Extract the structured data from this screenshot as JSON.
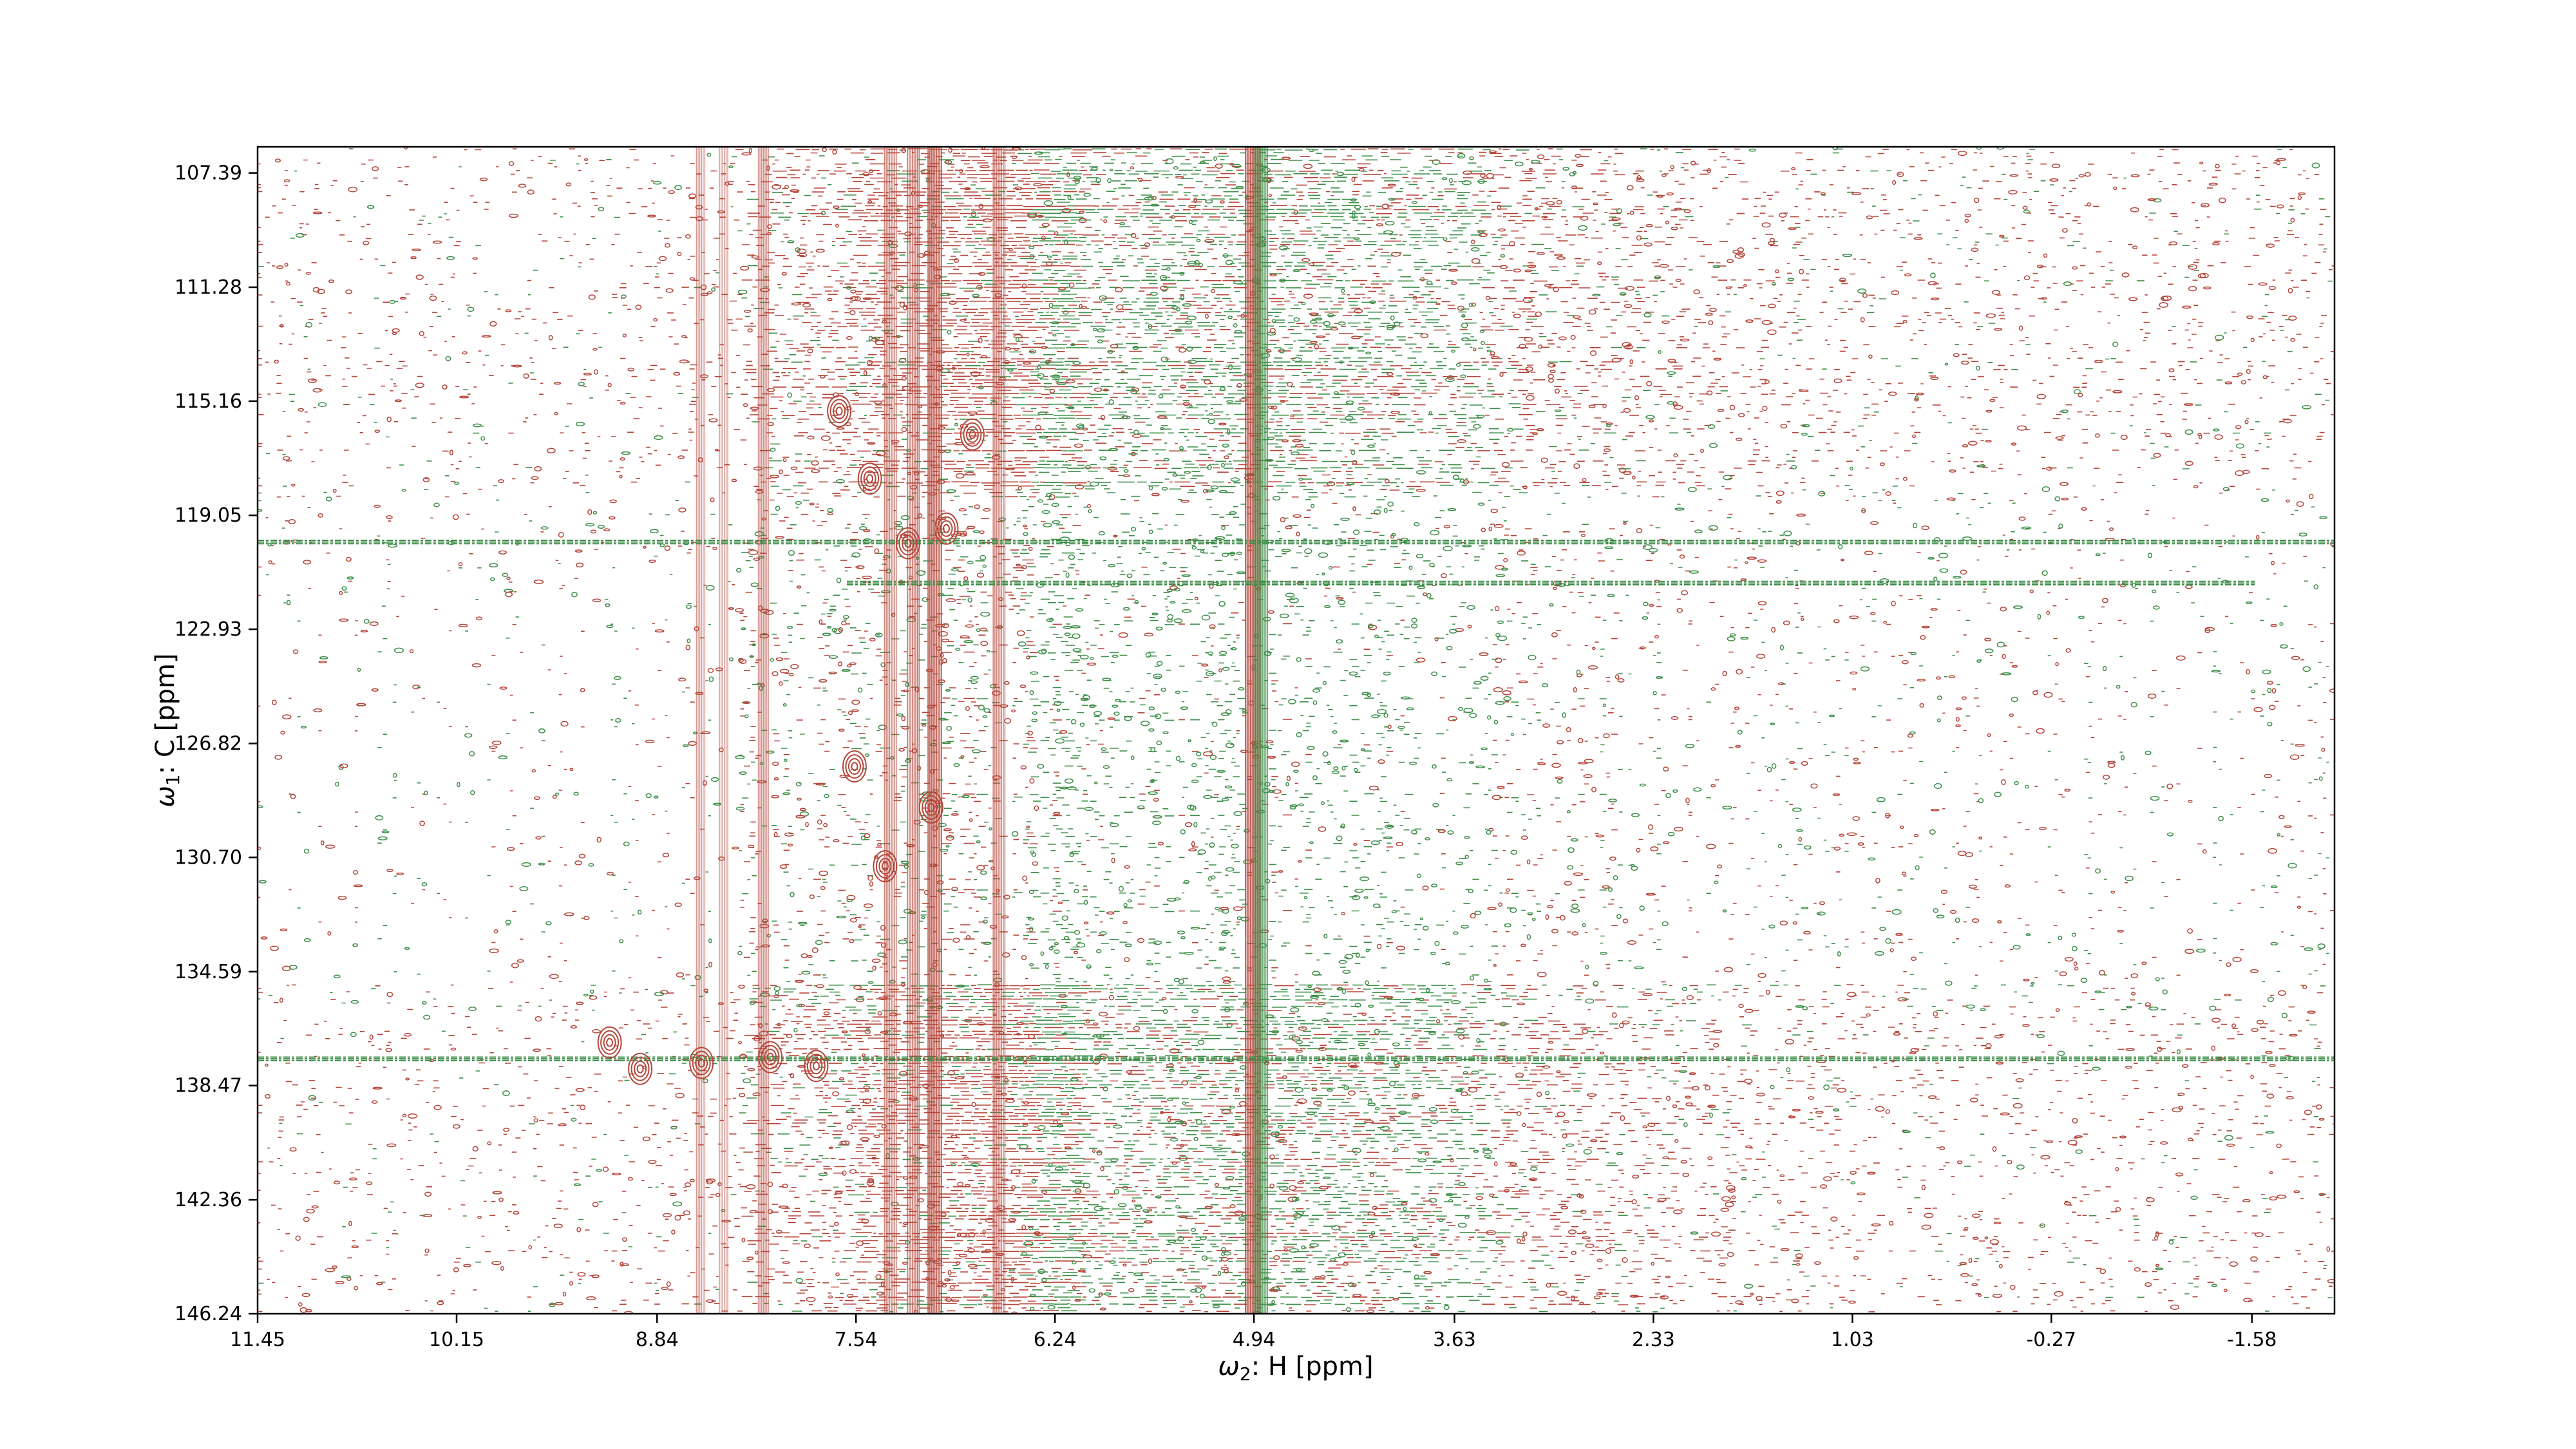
{
  "chart_data": {
    "type": "heatmap",
    "subtype": "2D NMR contour spectrum",
    "title": "",
    "xlabel": {
      "symbol": "ω",
      "subscript": "2",
      "text": ": H [ppm]"
    },
    "ylabel": {
      "symbol": "ω",
      "subscript": "1",
      "text": ": C [ppm]"
    },
    "xlim": [
      11.45,
      -2.12
    ],
    "ylim": [
      106.5,
      146.24
    ],
    "x_axis_inverted": true,
    "y_axis_inverted": true,
    "grid": false,
    "legend": "none",
    "x_ticks": [
      "11.45",
      "10.15",
      "8.84",
      "7.54",
      "6.24",
      "4.94",
      "3.63",
      "2.33",
      "1.03",
      "-0.27",
      "-1.58"
    ],
    "x_tick_values": [
      11.45,
      10.15,
      8.84,
      7.54,
      6.24,
      4.94,
      3.63,
      2.33,
      1.03,
      -0.27,
      -1.58
    ],
    "y_ticks": [
      "107.39",
      "111.28",
      "115.16",
      "119.05",
      "122.93",
      "126.82",
      "130.70",
      "134.59",
      "138.47",
      "142.36",
      "146.24"
    ],
    "y_tick_values": [
      107.39,
      111.28,
      115.16,
      119.05,
      122.93,
      126.82,
      130.7,
      134.59,
      138.47,
      142.36,
      146.24
    ],
    "series": [
      {
        "sign": "positive",
        "color": "#b5463a"
      },
      {
        "sign": "negative",
        "color": "#3f8f4a"
      }
    ],
    "vertical_bands_ppm": [
      {
        "x": 4.94,
        "strength": 1.0,
        "color": "#b5463a"
      },
      {
        "x": 4.89,
        "strength": 0.8,
        "color": "#3f8f4a"
      },
      {
        "x": 7.02,
        "strength": 0.9,
        "color": "#b5463a"
      },
      {
        "x": 7.16,
        "strength": 0.7,
        "color": "#b5463a"
      },
      {
        "x": 7.31,
        "strength": 0.6,
        "color": "#b5463a"
      },
      {
        "x": 6.6,
        "strength": 0.6,
        "color": "#b5463a"
      },
      {
        "x": 8.14,
        "strength": 0.5,
        "color": "#b5463a"
      },
      {
        "x": 8.4,
        "strength": 0.4,
        "color": "#b5463a"
      },
      {
        "x": 8.55,
        "strength": 0.4,
        "color": "#b5463a"
      }
    ],
    "horizontal_bands_ppm": [
      {
        "y": 119.9,
        "color": "#3f8f4a",
        "x_from": 11.45,
        "x_to": -2.12
      },
      {
        "y": 137.5,
        "color": "#3f8f4a",
        "x_from": 11.45,
        "x_to": -2.12
      },
      {
        "y": 121.3,
        "color": "#3f8f4a",
        "x_from": 7.6,
        "x_to": -1.6
      }
    ],
    "peaks_ppm": [
      {
        "x": 7.65,
        "y": 115.5
      },
      {
        "x": 7.45,
        "y": 117.8
      },
      {
        "x": 7.2,
        "y": 120.0
      },
      {
        "x": 6.78,
        "y": 116.3
      },
      {
        "x": 7.55,
        "y": 127.6
      },
      {
        "x": 7.35,
        "y": 131.0
      },
      {
        "x": 7.05,
        "y": 129.0
      },
      {
        "x": 9.15,
        "y": 137.0
      },
      {
        "x": 8.95,
        "y": 137.9
      },
      {
        "x": 8.55,
        "y": 137.7
      },
      {
        "x": 8.1,
        "y": 137.5
      },
      {
        "x": 7.8,
        "y": 137.8
      },
      {
        "x": 6.95,
        "y": 119.5
      }
    ]
  }
}
